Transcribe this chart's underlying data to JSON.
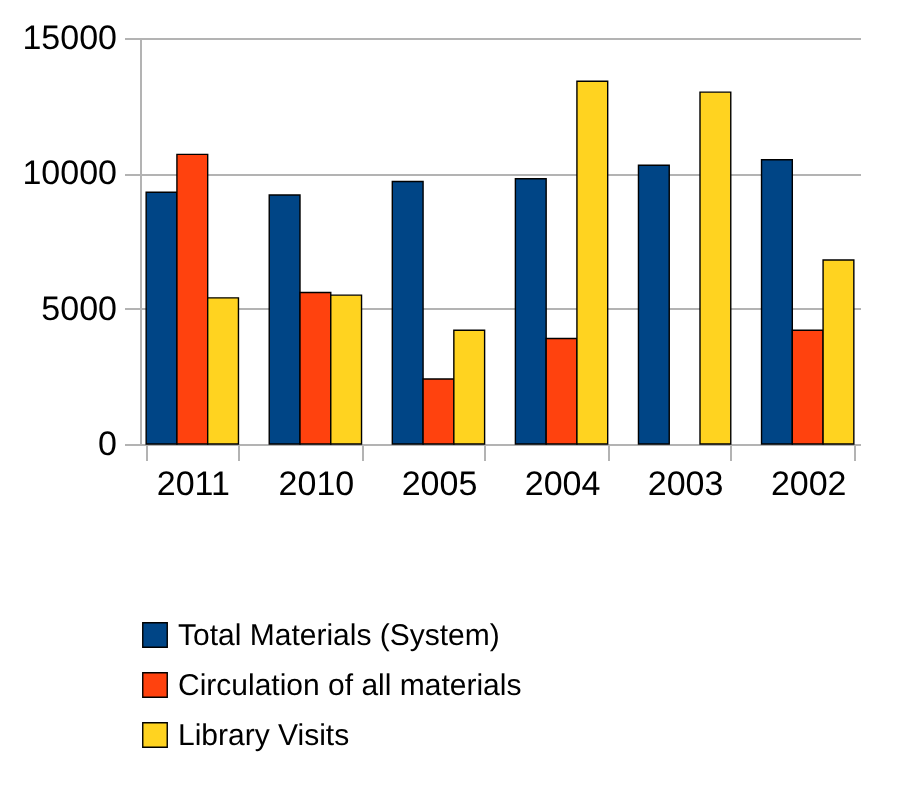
{
  "chart_data": {
    "type": "bar",
    "categories": [
      "2011",
      "2010",
      "2005",
      "2004",
      "2003",
      "2002"
    ],
    "series": [
      {
        "name": "Total Materials (System)",
        "color": "#004586",
        "values": [
          9300,
          9200,
          9700,
          9800,
          10300,
          10500
        ]
      },
      {
        "name": "Circulation of all materials",
        "color": "#ff420e",
        "values": [
          10700,
          5600,
          2400,
          3900,
          null,
          4200
        ]
      },
      {
        "name": "Library Visits",
        "color": "#ffd320",
        "values": [
          5400,
          5500,
          4200,
          13400,
          13000,
          6800
        ]
      }
    ],
    "ylim": [
      0,
      15000
    ],
    "yticks": [
      0,
      5000,
      10000,
      15000
    ],
    "grid": "y",
    "legend": "bottom"
  }
}
